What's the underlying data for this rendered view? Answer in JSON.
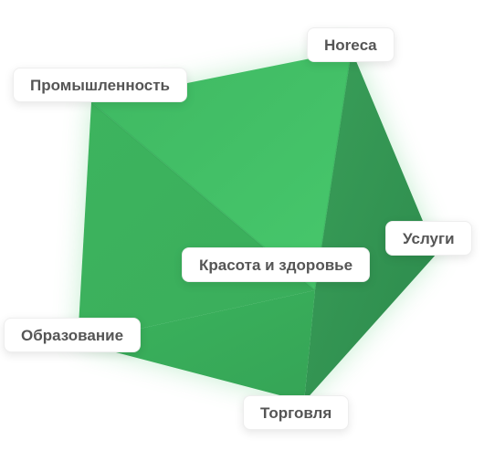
{
  "colors": {
    "shape_light": "#46C56A",
    "shape_mid": "#3DB45E",
    "shape_dark": "#2E8F4F",
    "label_text": "#555555",
    "label_bg": "#FFFFFF"
  },
  "labels": {
    "horeca": "Horeca",
    "industry": "Промышленность",
    "services": "Услуги",
    "beauty_health": "Красота и здоровье",
    "education": "Образование",
    "trade": "Торговля"
  }
}
